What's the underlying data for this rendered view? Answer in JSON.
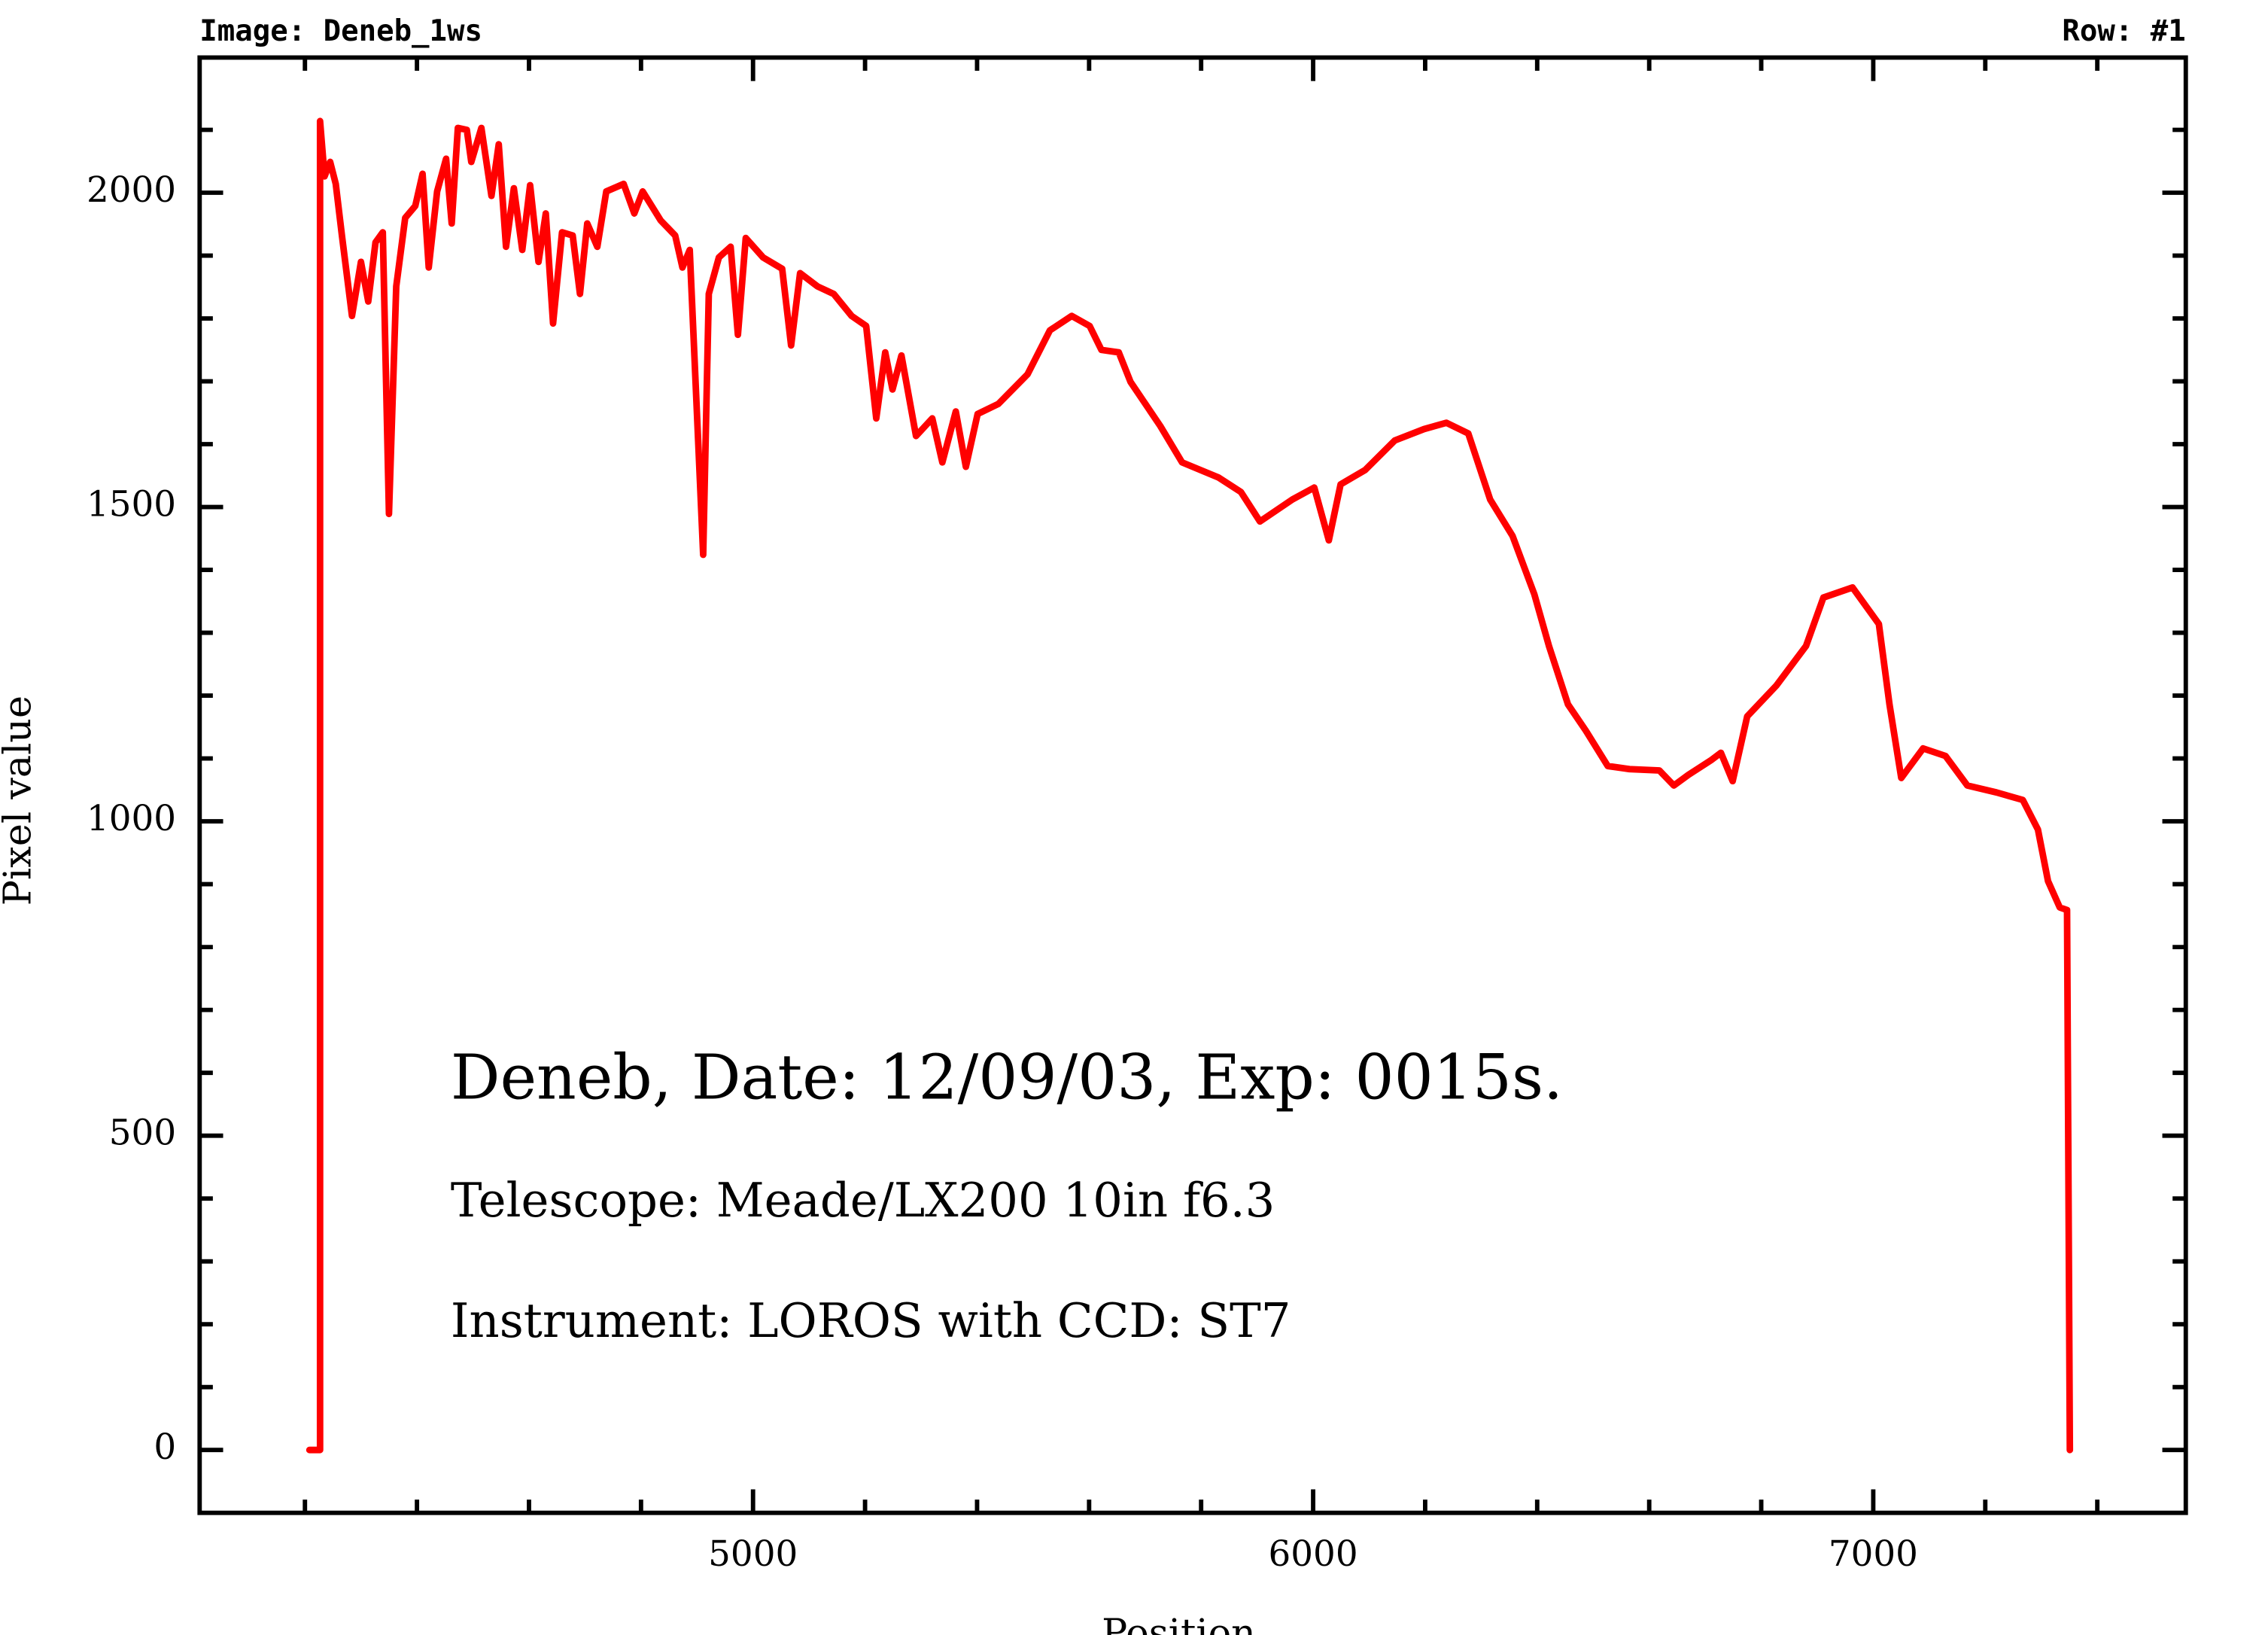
{
  "chart_data": {
    "type": "line",
    "header_left": "Image: Deneb_1ws",
    "header_right": "Row: #1",
    "x_label": "Position",
    "y_label": "Pixel value",
    "annotations": [
      "Deneb, Date: 12/09/03, Exp: 0015s.",
      "Telescope: Meade/LX200 10in f6.3",
      "Instrument: LOROS with CCD: ST7"
    ],
    "xlim": [
      4012,
      7558
    ],
    "ylim": [
      -100,
      2215
    ],
    "xticks": [
      5000,
      6000,
      7000
    ],
    "yticks": [
      0,
      500,
      1000,
      1500,
      2000
    ],
    "x_minor_ticks": [
      4200,
      4400,
      4600,
      4800,
      5200,
      5400,
      5600,
      5800,
      6200,
      6400,
      6600,
      6800,
      7200,
      7400
    ],
    "y_minor_ticks": [
      100,
      200,
      300,
      400,
      600,
      700,
      800,
      900,
      1100,
      1200,
      1300,
      1400,
      1600,
      1700,
      1800,
      1900,
      2100
    ],
    "series": [
      {
        "color": "#ff0000",
        "x": [
          4208,
          4227,
          4227,
          4235,
          4245,
          4255,
          4266,
          4284,
          4300,
          4313,
          4326,
          4339,
          4350,
          4363,
          4379,
          4397,
          4410,
          4421,
          4436,
          4452,
          4462,
          4473,
          4489,
          4497,
          4515,
          4533,
          4546,
          4559,
          4573,
          4588,
          4602,
          4617,
          4630,
          4643,
          4659,
          4678,
          4691,
          4704,
          4722,
          4738,
          4769,
          4788,
          4803,
          4835,
          4861,
          4874,
          4887,
          4911,
          4921,
          4939,
          4960,
          4973,
          4987,
          5018,
          5052,
          5068,
          5084,
          5115,
          5144,
          5176,
          5202,
          5220,
          5236,
          5249,
          5265,
          5291,
          5320,
          5338,
          5362,
          5380,
          5401,
          5438,
          5490,
          5530,
          5569,
          5601,
          5622,
          5653,
          5674,
          5727,
          5766,
          5831,
          5871,
          5905,
          5963,
          6002,
          6028,
          6049,
          6093,
          6146,
          6198,
          6238,
          6277,
          6316,
          6356,
          6395,
          6421,
          6455,
          6487,
          6526,
          6565,
          6618,
          6644,
          6670,
          6710,
          6728,
          6749,
          6775,
          6827,
          6880,
          6911,
          6963,
          7010,
          7029,
          7050,
          7089,
          7129,
          7168,
          7220,
          7267,
          7294,
          7312,
          7333,
          7346,
          7351
        ],
        "values": [
          0,
          0,
          2114,
          2026,
          2049,
          2014,
          1932,
          1804,
          1890,
          1827,
          1921,
          1937,
          1489,
          1851,
          1960,
          1979,
          2030,
          1881,
          2002,
          2054,
          1951,
          2103,
          2100,
          2049,
          2103,
          1995,
          2077,
          1914,
          2007,
          1909,
          2012,
          1890,
          1967,
          1792,
          1937,
          1932,
          1839,
          1951,
          1914,
          2002,
          2014,
          1967,
          2002,
          1956,
          1932,
          1881,
          1909,
          1424,
          1839,
          1897,
          1914,
          1774,
          1928,
          1897,
          1879,
          1757,
          1872,
          1851,
          1839,
          1804,
          1788,
          1641,
          1746,
          1687,
          1741,
          1613,
          1641,
          1571,
          1652,
          1564,
          1648,
          1664,
          1711,
          1781,
          1804,
          1788,
          1750,
          1746,
          1699,
          1629,
          1571,
          1547,
          1524,
          1477,
          1512,
          1531,
          1447,
          1536,
          1559,
          1606,
          1624,
          1634,
          1617,
          1512,
          1454,
          1361,
          1279,
          1186,
          1144,
          1088,
          1083,
          1081,
          1057,
          1074,
          1097,
          1109,
          1064,
          1167,
          1216,
          1279,
          1356,
          1372,
          1314,
          1186,
          1069,
          1116,
          1104,
          1057,
          1046,
          1034,
          987,
          905,
          863,
          859,
          0
        ]
      }
    ]
  }
}
